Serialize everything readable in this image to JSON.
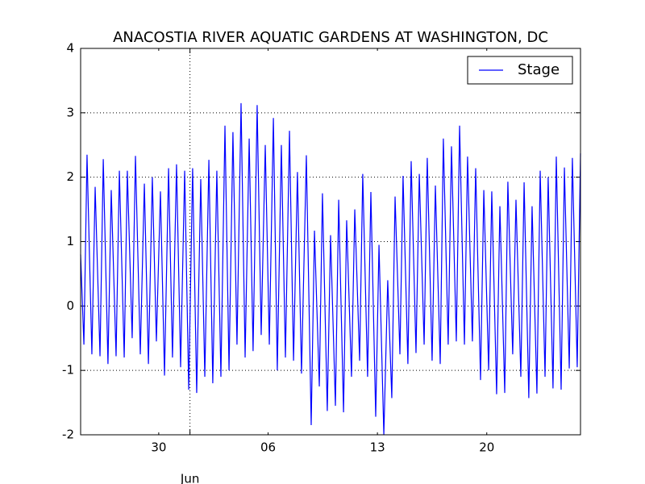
{
  "chart_data": {
    "type": "line",
    "title": "ANACOSTIA RIVER AQUATIC GARDENS AT WASHINGTON, DC",
    "x": [
      -7.0,
      -6.79,
      -6.59,
      -6.28,
      -6.07,
      -5.76,
      -5.55,
      -5.25,
      -5.04,
      -4.73,
      -4.52,
      -4.21,
      -4.01,
      -3.7,
      -3.49,
      -3.18,
      -2.92,
      -2.66,
      -2.41,
      -2.15,
      -1.89,
      -1.63,
      -1.37,
      -1.12,
      -0.86,
      -0.6,
      -0.34,
      -0.08,
      0.17,
      0.43,
      0.69,
      0.95,
      1.21,
      1.46,
      1.72,
      1.98,
      2.24,
      2.5,
      2.75,
      3.01,
      3.27,
      3.53,
      3.79,
      4.04,
      4.3,
      4.56,
      4.82,
      5.08,
      5.34,
      5.59,
      5.85,
      6.11,
      6.37,
      6.63,
      6.88,
      7.14,
      7.45,
      7.76,
      7.97,
      8.28,
      8.48,
      8.79,
      9.0,
      9.31,
      9.52,
      9.83,
      10.03,
      10.34,
      10.55,
      10.86,
      11.06,
      11.37,
      11.58,
      11.89,
      12.1,
      12.41,
      12.66,
      12.92,
      13.13,
      13.44,
      13.64,
      13.95,
      14.16,
      14.47,
      14.68,
      14.99,
      15.19,
      15.5,
      15.71,
      16.02,
      16.22,
      16.53,
      16.74,
      17.05,
      17.26,
      17.57,
      17.77,
      18.08,
      18.29,
      18.6,
      18.81,
      19.12,
      19.32,
      19.63,
      19.84,
      20.15,
      20.35,
      20.66,
      20.87,
      21.18,
      21.39,
      21.69,
      21.9,
      22.21,
      22.42,
      22.73,
      22.93,
      23.24,
      23.45,
      23.76,
      23.97,
      24.28,
      24.48,
      24.79,
      25.0
    ],
    "series": [
      {
        "name": "Stage",
        "color": "#0000ff",
        "values": [
          0.8,
          -0.6,
          2.35,
          -0.75,
          1.85,
          -0.78,
          2.28,
          -0.9,
          1.8,
          -0.78,
          2.1,
          -0.8,
          2.1,
          -0.5,
          2.33,
          -0.75,
          1.9,
          -0.9,
          2.0,
          -0.55,
          1.78,
          -1.08,
          2.14,
          -0.8,
          2.2,
          -0.95,
          2.1,
          -1.3,
          2.14,
          -1.35,
          1.97,
          -1.1,
          2.27,
          -1.2,
          2.1,
          -1.1,
          2.8,
          -1.0,
          2.7,
          -0.6,
          3.15,
          -0.8,
          2.6,
          -0.7,
          3.12,
          -0.45,
          2.5,
          -0.6,
          2.92,
          -1.0,
          2.5,
          -0.8,
          2.72,
          -0.85,
          2.08,
          -1.05,
          2.34,
          -1.85,
          1.17,
          -1.25,
          1.75,
          -1.63,
          1.1,
          -1.55,
          1.65,
          -1.65,
          1.33,
          -1.1,
          1.5,
          -0.85,
          2.05,
          -1.1,
          1.77,
          -1.72,
          0.95,
          -2.0,
          0.4,
          -1.43,
          1.7,
          -0.75,
          2.02,
          -0.9,
          2.25,
          -0.73,
          2.05,
          -0.6,
          2.3,
          -0.85,
          1.87,
          -0.9,
          2.6,
          -0.6,
          2.48,
          -0.55,
          2.8,
          -0.6,
          2.32,
          -0.55,
          2.14,
          -1.15,
          1.8,
          -1.0,
          1.78,
          -1.37,
          1.55,
          -1.35,
          1.93,
          -0.75,
          1.65,
          -1.1,
          1.92,
          -1.43,
          1.55,
          -1.36,
          2.1,
          -1.1,
          2.0,
          -1.28,
          2.32,
          -1.3,
          2.15,
          -0.97,
          2.3,
          -0.95,
          2.37
        ]
      }
    ],
    "xlim": [
      -7,
      25
    ],
    "xticks": [
      {
        "value": -2,
        "label": "30"
      },
      {
        "value": 5,
        "label": "06"
      },
      {
        "value": 12,
        "label": "13"
      },
      {
        "value": 19,
        "label": "20"
      }
    ],
    "xticks_major": [
      {
        "value": 0,
        "label": "Jun"
      }
    ],
    "ylim": [
      -2,
      4
    ],
    "yticks": [
      -2,
      -1,
      0,
      1,
      2,
      3,
      4
    ],
    "grid": true,
    "legend": "upper right"
  }
}
